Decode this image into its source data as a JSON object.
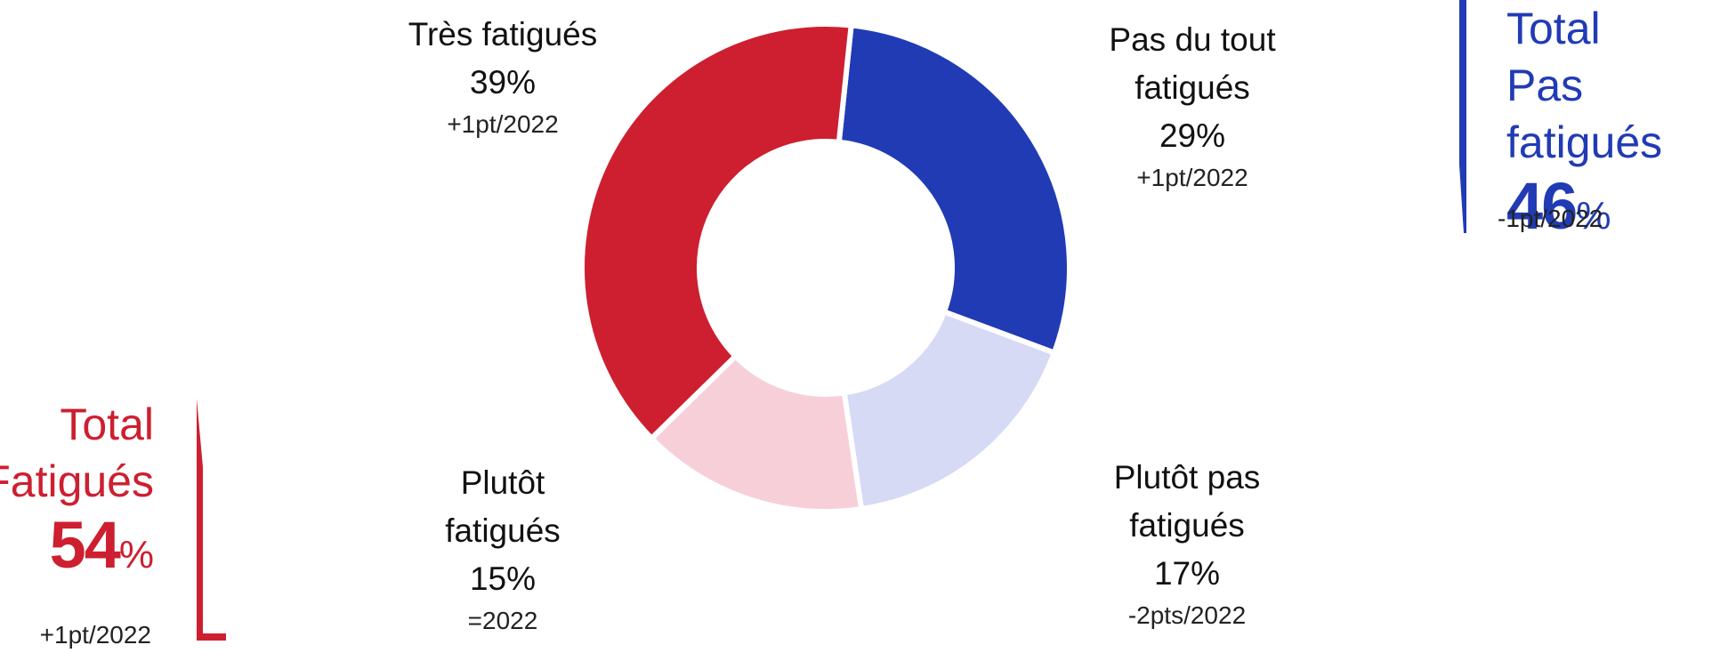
{
  "chart_data": {
    "type": "donut",
    "categories": [
      "Pas du tout fatigués",
      "Plutôt pas fatigués",
      "Plutôt fatigués",
      "Très fatigués"
    ],
    "values": [
      29,
      17,
      15,
      39
    ],
    "value_labels": [
      "29%",
      "17%",
      "15%",
      "39%"
    ],
    "changes": [
      "+1pt/2022",
      "-2pts/2022",
      "=2022",
      "+1pt/2022"
    ],
    "colors": [
      "#213bb5",
      "#d6daf5",
      "#f7cfd9",
      "#cd1f30"
    ],
    "totals": [
      {
        "title": [
          "Total",
          "Pas fatigués"
        ],
        "value": 46,
        "unit": "%",
        "change": "-1pt/2022",
        "color": "#213bb5"
      },
      {
        "title": [
          "Total",
          "Fatigués"
        ],
        "value": 54,
        "unit": "%",
        "change": "+1pt/2022",
        "color": "#cd1f30"
      }
    ]
  }
}
